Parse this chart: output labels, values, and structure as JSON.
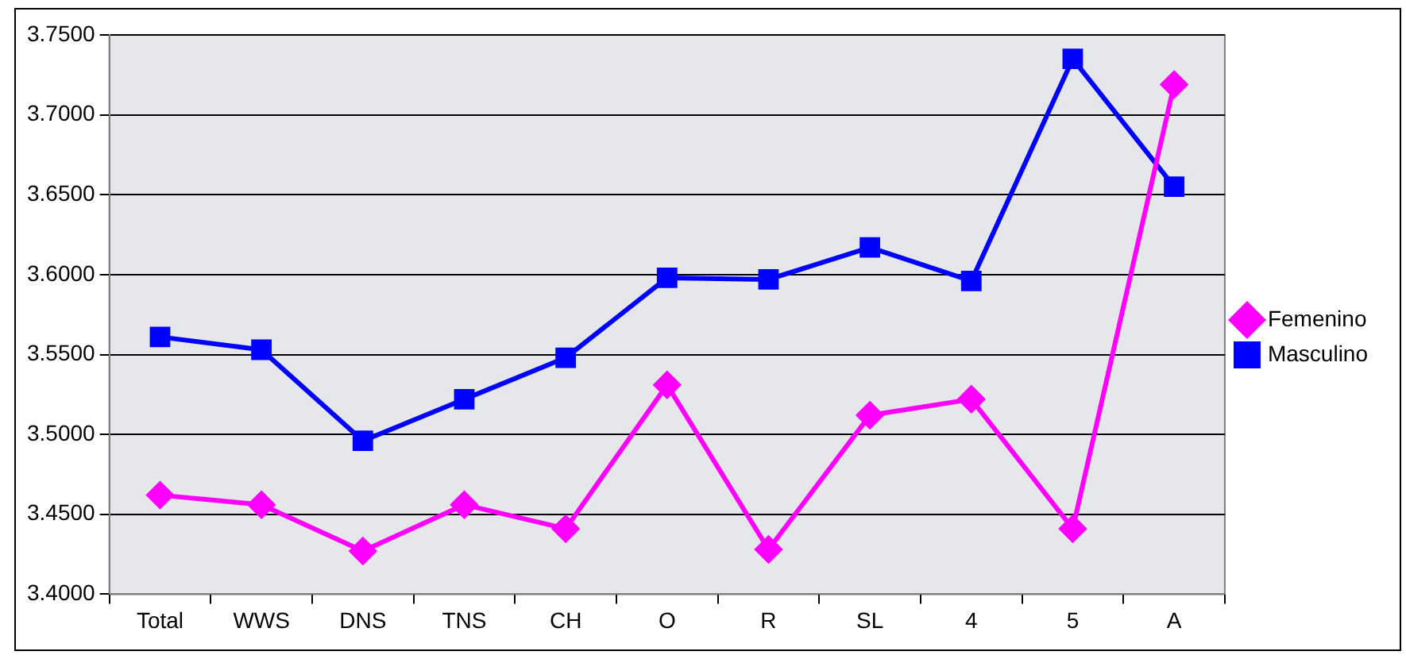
{
  "chart_data": {
    "type": "line",
    "categories": [
      "Total",
      "WWS",
      "DNS",
      "TNS",
      "CH",
      "O",
      "R",
      "SL",
      "4",
      "5",
      "A"
    ],
    "series": [
      {
        "name": "Femenino",
        "color": "#ff00ff",
        "marker": "diamond",
        "values": [
          3.462,
          3.456,
          3.427,
          3.456,
          3.441,
          3.531,
          3.428,
          3.512,
          3.522,
          3.441,
          3.719
        ]
      },
      {
        "name": "Masculino",
        "color": "#0000ff",
        "marker": "square",
        "values": [
          3.561,
          3.553,
          3.496,
          3.522,
          3.548,
          3.598,
          3.597,
          3.617,
          3.596,
          3.735,
          3.655
        ]
      }
    ],
    "ylim": [
      3.4,
      3.75
    ],
    "yticks": [
      {
        "value": 3.4,
        "label": "3.4000"
      },
      {
        "value": 3.45,
        "label": "3.4500"
      },
      {
        "value": 3.5,
        "label": "3.5000"
      },
      {
        "value": 3.55,
        "label": "3.5500"
      },
      {
        "value": 3.6,
        "label": "3.6000"
      },
      {
        "value": 3.65,
        "label": "3.6500"
      },
      {
        "value": 3.7,
        "label": "3.7000"
      },
      {
        "value": 3.75,
        "label": "3.7500"
      }
    ],
    "grid": "y",
    "legend": "right",
    "line_style": "solid"
  }
}
